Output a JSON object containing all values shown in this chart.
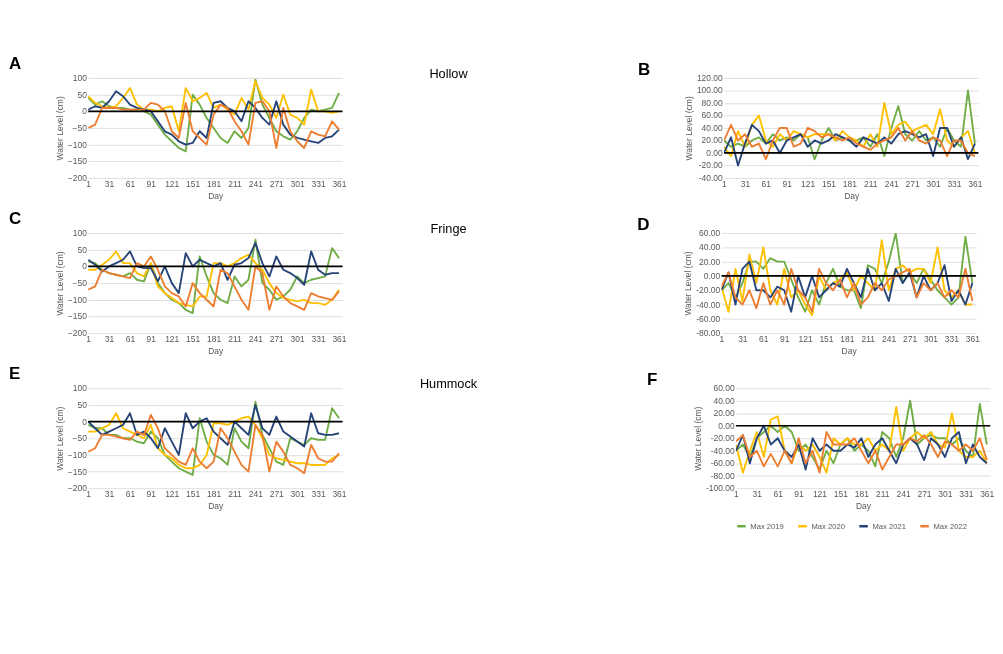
{
  "chart_data": [
    {
      "type": "line",
      "title": "A",
      "xlabel": "Day",
      "ylabel": "Water Level (cm)",
      "annotations": [
        "Hollow"
      ],
      "grid": "y",
      "legend": false,
      "x": [
        1,
        11,
        21,
        31,
        41,
        51,
        61,
        71,
        81,
        91,
        101,
        111,
        121,
        131,
        141,
        151,
        161,
        171,
        181,
        191,
        201,
        211,
        221,
        231,
        241,
        251,
        261,
        271,
        281,
        291,
        301,
        311,
        321,
        331,
        341,
        351,
        361
      ],
      "xlim": [
        1,
        366
      ],
      "xticks": [
        1,
        31,
        61,
        91,
        121,
        151,
        181,
        211,
        241,
        271,
        301,
        331,
        361
      ],
      "ylim": [
        -200,
        100
      ],
      "yticks": [
        -200,
        -150,
        -100,
        -50,
        0,
        50,
        100
      ],
      "ref_lines": [
        {
          "axis": "y",
          "value": 0,
          "color": "#000000"
        }
      ],
      "series": [
        {
          "color": "#70ad47",
          "values": [
            40,
            20,
            30,
            15,
            10,
            10,
            5,
            5,
            0,
            -10,
            -40,
            -70,
            -90,
            -110,
            -120,
            50,
            20,
            -20,
            -50,
            -80,
            -95,
            -60,
            -80,
            -50,
            95,
            20,
            -20,
            -60,
            -75,
            -85,
            -60,
            -20,
            5,
            0,
            5,
            10,
            55
          ]
        },
        {
          "color": "#ffc000",
          "values": [
            45,
            25,
            15,
            10,
            15,
            40,
            70,
            20,
            5,
            5,
            0,
            10,
            15,
            -60,
            70,
            30,
            40,
            55,
            10,
            20,
            5,
            -10,
            40,
            5,
            90,
            40,
            20,
            -20,
            50,
            -10,
            -20,
            -40,
            65,
            0,
            0,
            -5,
            0
          ]
        },
        {
          "color": "#264478",
          "values": [
            5,
            15,
            10,
            30,
            60,
            45,
            20,
            10,
            5,
            0,
            -30,
            -60,
            -70,
            -90,
            -100,
            -95,
            -60,
            -80,
            25,
            30,
            10,
            0,
            -30,
            30,
            10,
            -20,
            -40,
            30,
            -40,
            -70,
            -80,
            -85,
            -90,
            -95,
            -80,
            -75,
            -55
          ]
        },
        {
          "color": "#ed7d31",
          "values": [
            -50,
            -40,
            10,
            10,
            10,
            5,
            5,
            5,
            5,
            25,
            20,
            0,
            -60,
            -80,
            25,
            -60,
            -80,
            -100,
            -10,
            20,
            10,
            -30,
            -60,
            -100,
            25,
            30,
            0,
            -110,
            10,
            -60,
            -90,
            -110,
            -60,
            -70,
            -75,
            -30,
            -55
          ]
        }
      ]
    },
    {
      "type": "line",
      "title": "B",
      "xlabel": "Day",
      "ylabel": "Water Level (cm)",
      "grid": "y",
      "legend": false,
      "x": [
        1,
        11,
        21,
        31,
        41,
        51,
        61,
        71,
        81,
        91,
        101,
        111,
        121,
        131,
        141,
        151,
        161,
        171,
        181,
        191,
        201,
        211,
        221,
        231,
        241,
        251,
        261,
        271,
        281,
        291,
        301,
        311,
        321,
        331,
        341,
        351,
        361
      ],
      "xlim": [
        1,
        366
      ],
      "xticks": [
        1,
        31,
        61,
        91,
        121,
        151,
        181,
        211,
        241,
        271,
        301,
        331,
        361
      ],
      "ylim": [
        -40,
        120
      ],
      "yticks": [
        {
          "value": -40,
          "label": "-40.00"
        },
        {
          "value": -20,
          "label": "-20.00"
        },
        {
          "value": 0,
          "label": "0.00"
        },
        {
          "value": 20,
          "label": "20.00"
        },
        {
          "value": 40,
          "label": "40.00"
        },
        {
          "value": 60,
          "label": "60.00"
        },
        {
          "value": 80,
          "label": "80.00"
        },
        {
          "value": 100,
          "label": "100.00"
        },
        {
          "value": 120,
          "label": "120.00"
        }
      ],
      "ref_lines": [
        {
          "axis": "y",
          "value": 0,
          "color": "#000000"
        }
      ],
      "series": [
        {
          "color": "#70ad47",
          "values": [
            20,
            10,
            15,
            10,
            20,
            25,
            15,
            30,
            20,
            25,
            20,
            30,
            25,
            -10,
            20,
            40,
            20,
            25,
            20,
            20,
            25,
            10,
            30,
            -5,
            40,
            75,
            30,
            20,
            35,
            20,
            25,
            10,
            40,
            20,
            10,
            100,
            15
          ]
        },
        {
          "color": "#ffc000",
          "values": [
            10,
            -5,
            35,
            10,
            45,
            60,
            20,
            10,
            30,
            20,
            35,
            30,
            25,
            30,
            30,
            30,
            20,
            35,
            25,
            20,
            10,
            30,
            10,
            80,
            30,
            45,
            50,
            35,
            40,
            45,
            30,
            70,
            20,
            10,
            25,
            35,
            0
          ]
        },
        {
          "color": "#264478",
          "values": [
            0,
            25,
            -20,
            15,
            45,
            35,
            15,
            20,
            0,
            20,
            25,
            30,
            10,
            20,
            15,
            20,
            30,
            25,
            20,
            10,
            25,
            20,
            15,
            25,
            15,
            30,
            35,
            30,
            25,
            30,
            -5,
            40,
            40,
            10,
            25,
            -10,
            15
          ]
        },
        {
          "color": "#ed7d31",
          "values": [
            20,
            45,
            20,
            30,
            10,
            15,
            -10,
            20,
            40,
            40,
            10,
            15,
            40,
            35,
            25,
            30,
            25,
            20,
            25,
            15,
            10,
            5,
            15,
            20,
            25,
            40,
            20,
            35,
            20,
            15,
            25,
            20,
            -5,
            20,
            20,
            0,
            -5
          ]
        }
      ]
    },
    {
      "type": "line",
      "title": "C",
      "xlabel": "Day",
      "ylabel": "Water Level (cm)",
      "annotations": [
        "Fringe"
      ],
      "grid": "y",
      "legend": false,
      "x": [
        1,
        11,
        21,
        31,
        41,
        51,
        61,
        71,
        81,
        91,
        101,
        111,
        121,
        131,
        141,
        151,
        161,
        171,
        181,
        191,
        201,
        211,
        221,
        231,
        241,
        251,
        261,
        271,
        281,
        291,
        301,
        311,
        321,
        331,
        341,
        351,
        361
      ],
      "xlim": [
        1,
        366
      ],
      "xticks": [
        1,
        31,
        61,
        91,
        121,
        151,
        181,
        211,
        241,
        271,
        301,
        331,
        361
      ],
      "ylim": [
        -200,
        100
      ],
      "yticks": [
        -200,
        -150,
        -100,
        -50,
        0,
        50,
        100
      ],
      "ref_lines": [
        {
          "axis": "y",
          "value": 0,
          "color": "#000000"
        }
      ],
      "series": [
        {
          "color": "#70ad47",
          "values": [
            15,
            10,
            -10,
            -20,
            -25,
            -30,
            -20,
            -40,
            -45,
            10,
            -50,
            -80,
            -100,
            -110,
            -130,
            -140,
            30,
            -30,
            -80,
            -100,
            -110,
            -30,
            -60,
            -40,
            80,
            -50,
            -70,
            -100,
            -90,
            -70,
            -30,
            -50,
            -40,
            -35,
            -30,
            55,
            25
          ]
        },
        {
          "color": "#ffc000",
          "values": [
            -10,
            -10,
            5,
            20,
            45,
            10,
            10,
            -20,
            -30,
            10,
            -60,
            -80,
            -95,
            -110,
            -115,
            -120,
            -90,
            -90,
            10,
            10,
            0,
            10,
            25,
            35,
            10,
            -10,
            -50,
            -80,
            -95,
            -100,
            -105,
            -100,
            -110,
            -110,
            -115,
            -100,
            -70
          ]
        },
        {
          "color": "#264478",
          "values": [
            20,
            5,
            -15,
            0,
            10,
            20,
            45,
            0,
            -5,
            -5,
            -45,
            0,
            -50,
            -80,
            40,
            0,
            20,
            10,
            0,
            10,
            -40,
            5,
            10,
            25,
            70,
            10,
            -30,
            30,
            -10,
            -20,
            -35,
            -55,
            45,
            -10,
            -25,
            -20,
            -20
          ]
        },
        {
          "color": "#ed7d31",
          "values": [
            -70,
            -60,
            -10,
            -20,
            -25,
            -30,
            -35,
            10,
            0,
            30,
            -10,
            -60,
            -80,
            -90,
            -120,
            -50,
            -80,
            -100,
            -120,
            -10,
            -20,
            -60,
            -100,
            -130,
            0,
            -20,
            -130,
            -60,
            -90,
            -110,
            -120,
            -130,
            -80,
            -90,
            -95,
            -100,
            -75
          ]
        }
      ]
    },
    {
      "type": "line",
      "title": "D",
      "xlabel": "Day",
      "ylabel": "Water Level (cm)",
      "grid": "y",
      "legend": false,
      "x": [
        1,
        11,
        21,
        31,
        41,
        51,
        61,
        71,
        81,
        91,
        101,
        111,
        121,
        131,
        141,
        151,
        161,
        171,
        181,
        191,
        201,
        211,
        221,
        231,
        241,
        251,
        261,
        271,
        281,
        291,
        301,
        311,
        321,
        331,
        341,
        351,
        361
      ],
      "xlim": [
        1,
        366
      ],
      "xticks": [
        1,
        31,
        61,
        91,
        121,
        151,
        181,
        211,
        241,
        271,
        301,
        331,
        361
      ],
      "ylim": [
        -80,
        60
      ],
      "yticks": [
        {
          "value": -80,
          "label": "-80.00"
        },
        {
          "value": -60,
          "label": "-60.00"
        },
        {
          "value": -40,
          "label": "-40.00"
        },
        {
          "value": -20,
          "label": "-20.00"
        },
        {
          "value": 0,
          "label": "0.00"
        },
        {
          "value": 20,
          "label": "20.00"
        },
        {
          "value": 40,
          "label": "40.00"
        },
        {
          "value": 60,
          "label": "60.00"
        }
      ],
      "ref_lines": [
        {
          "axis": "y",
          "value": 0,
          "color": "#000000"
        }
      ],
      "series": [
        {
          "color": "#70ad47",
          "values": [
            -20,
            -10,
            -30,
            -10,
            20,
            20,
            10,
            25,
            20,
            20,
            -5,
            -30,
            -50,
            -20,
            -40,
            -10,
            10,
            -15,
            -20,
            -20,
            -45,
            15,
            10,
            -10,
            20,
            60,
            -10,
            5,
            -10,
            10,
            -5,
            -20,
            -30,
            -40,
            -30,
            55,
            -10
          ]
        },
        {
          "color": "#ffc000",
          "values": [
            -15,
            -50,
            10,
            -35,
            30,
            -10,
            40,
            -20,
            -40,
            10,
            -30,
            -20,
            -40,
            -55,
            0,
            -20,
            -10,
            -5,
            5,
            -20,
            0,
            -10,
            -20,
            50,
            -20,
            10,
            15,
            5,
            10,
            10,
            -10,
            40,
            -20,
            -30,
            -20,
            -40,
            -40
          ]
        },
        {
          "color": "#264478",
          "values": [
            -20,
            5,
            -40,
            10,
            20,
            -20,
            -20,
            -30,
            -15,
            -20,
            -50,
            0,
            -30,
            0,
            -30,
            -20,
            -10,
            -15,
            10,
            -10,
            -30,
            10,
            -20,
            -10,
            -35,
            10,
            -10,
            5,
            -30,
            0,
            -20,
            -10,
            15,
            -35,
            -20,
            -40,
            -10
          ]
        },
        {
          "color": "#ed7d31",
          "values": [
            -15,
            5,
            -30,
            -40,
            -20,
            -45,
            -10,
            -40,
            -20,
            -40,
            10,
            -20,
            -30,
            -50,
            10,
            -10,
            -20,
            -5,
            -30,
            -10,
            -40,
            -30,
            -10,
            -20,
            -5,
            0,
            5,
            10,
            -30,
            -10,
            -20,
            -10,
            -30,
            -20,
            -30,
            10,
            -35
          ]
        }
      ]
    },
    {
      "type": "line",
      "title": "E",
      "xlabel": "Day",
      "ylabel": "Water Level (cm)",
      "annotations": [
        "Hummock"
      ],
      "grid": "y",
      "legend": false,
      "x": [
        1,
        11,
        21,
        31,
        41,
        51,
        61,
        71,
        81,
        91,
        101,
        111,
        121,
        131,
        141,
        151,
        161,
        171,
        181,
        191,
        201,
        211,
        221,
        231,
        241,
        251,
        261,
        271,
        281,
        291,
        301,
        311,
        321,
        331,
        341,
        351,
        361
      ],
      "xlim": [
        1,
        366
      ],
      "xticks": [
        1,
        31,
        61,
        91,
        121,
        151,
        181,
        211,
        241,
        271,
        301,
        331,
        361
      ],
      "ylim": [
        -200,
        100
      ],
      "yticks": [
        -200,
        -150,
        -100,
        -50,
        0,
        50,
        100
      ],
      "ref_lines": [
        {
          "axis": "y",
          "value": 0,
          "color": "#000000"
        }
      ],
      "series": [
        {
          "color": "#70ad47",
          "values": [
            -10,
            -20,
            -20,
            -40,
            -40,
            -50,
            -50,
            -60,
            -65,
            -30,
            -50,
            -100,
            -120,
            -140,
            -150,
            -160,
            10,
            -60,
            -100,
            -110,
            -130,
            -20,
            -60,
            -80,
            60,
            -40,
            -80,
            -120,
            -130,
            -50,
            -60,
            -70,
            -50,
            -55,
            -55,
            40,
            10
          ]
        },
        {
          "color": "#ffc000",
          "values": [
            -30,
            -30,
            -20,
            -10,
            25,
            -20,
            -30,
            -40,
            -50,
            -10,
            -80,
            -100,
            -110,
            -130,
            -140,
            -140,
            -130,
            -100,
            -5,
            -5,
            -10,
            0,
            10,
            15,
            -10,
            -50,
            -100,
            -110,
            -115,
            -120,
            -125,
            -125,
            -130,
            -130,
            -130,
            -110,
            -100
          ]
        },
        {
          "color": "#264478",
          "values": [
            0,
            -20,
            -40,
            -30,
            -20,
            -10,
            25,
            -40,
            -30,
            -50,
            -80,
            -20,
            -60,
            -100,
            25,
            -20,
            0,
            10,
            -30,
            -50,
            -70,
            0,
            -20,
            -40,
            50,
            -20,
            -40,
            15,
            -30,
            -45,
            -60,
            -75,
            25,
            -35,
            -40,
            -40,
            -35
          ]
        },
        {
          "color": "#ed7d31",
          "values": [
            -90,
            -80,
            -40,
            -40,
            -45,
            -50,
            -55,
            -30,
            -40,
            20,
            -20,
            -80,
            -100,
            -120,
            -130,
            -80,
            -120,
            -140,
            -120,
            -20,
            -50,
            -90,
            -130,
            -150,
            -10,
            -40,
            -150,
            -60,
            -90,
            -130,
            -140,
            -155,
            -70,
            -110,
            -120,
            -120,
            -95
          ]
        }
      ]
    },
    {
      "type": "line",
      "title": "F",
      "xlabel": "Day",
      "ylabel": "Water Level (cm)",
      "grid": "y",
      "legend": "bottom",
      "x": [
        1,
        11,
        21,
        31,
        41,
        51,
        61,
        71,
        81,
        91,
        101,
        111,
        121,
        131,
        141,
        151,
        161,
        171,
        181,
        191,
        201,
        211,
        221,
        231,
        241,
        251,
        261,
        271,
        281,
        291,
        301,
        311,
        321,
        331,
        341,
        351,
        361
      ],
      "xlim": [
        1,
        366
      ],
      "xticks": [
        1,
        31,
        61,
        91,
        121,
        151,
        181,
        211,
        241,
        271,
        301,
        331,
        361
      ],
      "ylim": [
        -100,
        60
      ],
      "yticks": [
        {
          "value": -100,
          "label": "-100.00"
        },
        {
          "value": -80,
          "label": "-80.00"
        },
        {
          "value": -60,
          "label": "-60.00"
        },
        {
          "value": -40,
          "label": "-40.00"
        },
        {
          "value": -20,
          "label": "-20.00"
        },
        {
          "value": 0,
          "label": "0.00"
        },
        {
          "value": 20,
          "label": "20.00"
        },
        {
          "value": 40,
          "label": "40.00"
        },
        {
          "value": 60,
          "label": "60.00"
        }
      ],
      "ref_lines": [
        {
          "axis": "y",
          "value": 0,
          "color": "#000000"
        }
      ],
      "series": [
        {
          "name": "Max 2019",
          "color": "#70ad47",
          "values": [
            -40,
            -30,
            -50,
            -20,
            -10,
            0,
            -10,
            0,
            -10,
            -40,
            -30,
            -50,
            -70,
            -40,
            -60,
            -30,
            -20,
            -40,
            -30,
            -40,
            -65,
            -10,
            -20,
            -50,
            -20,
            40,
            -30,
            -20,
            -15,
            -20,
            -20,
            -30,
            -20,
            -40,
            -50,
            35,
            -30
          ]
        },
        {
          "name": "Max 2020",
          "color": "#ffc000",
          "values": [
            -30,
            -75,
            -40,
            -10,
            -50,
            10,
            15,
            -40,
            -60,
            -30,
            -40,
            -30,
            -50,
            -75,
            -20,
            -30,
            -20,
            -30,
            -30,
            -20,
            -40,
            -30,
            -40,
            30,
            -40,
            -20,
            -10,
            -20,
            -10,
            -30,
            -35,
            20,
            -40,
            -50,
            -50,
            -40,
            -60
          ]
        },
        {
          "name": "Max 2021",
          "color": "#264478",
          "values": [
            -40,
            -15,
            -60,
            -20,
            0,
            -30,
            -20,
            -40,
            -50,
            -30,
            -70,
            -20,
            -40,
            -30,
            -40,
            -40,
            -30,
            -35,
            -20,
            -50,
            -30,
            -20,
            -40,
            -60,
            -30,
            -20,
            -30,
            -55,
            -20,
            -30,
            -50,
            -20,
            -10,
            -60,
            -30,
            -50,
            -60
          ]
        },
        {
          "name": "Max 2022",
          "color": "#ed7d31",
          "values": [
            -25,
            -15,
            -50,
            -40,
            -65,
            -45,
            -65,
            -40,
            -60,
            -20,
            -60,
            -40,
            -75,
            -10,
            -30,
            -30,
            -30,
            -20,
            -40,
            -60,
            -40,
            -70,
            -50,
            -30,
            -30,
            -20,
            -25,
            -15,
            -30,
            -50,
            -25,
            -30,
            -40,
            -30,
            -40,
            -20,
            -55
          ]
        }
      ]
    }
  ]
}
